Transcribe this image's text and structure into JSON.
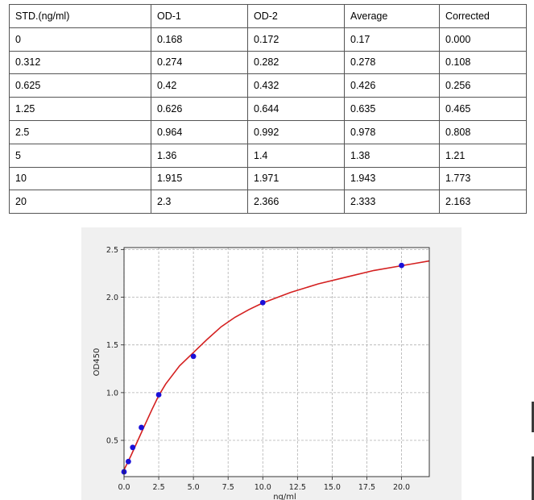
{
  "table": {
    "headers": [
      "STD.(ng/ml)",
      "OD-1",
      "OD-2",
      "Average",
      "Corrected"
    ],
    "rows": [
      [
        "0",
        "0.168",
        "0.172",
        "0.17",
        "0.000"
      ],
      [
        "0.312",
        "0.274",
        "0.282",
        "0.278",
        "0.108"
      ],
      [
        "0.625",
        "0.42",
        "0.432",
        "0.426",
        "0.256"
      ],
      [
        "1.25",
        "0.626",
        "0.644",
        "0.635",
        "0.465"
      ],
      [
        "2.5",
        "0.964",
        "0.992",
        "0.978",
        "0.808"
      ],
      [
        "5",
        "1.36",
        "1.4",
        "1.38",
        "1.21"
      ],
      [
        "10",
        "1.915",
        "1.971",
        "1.943",
        "1.773"
      ],
      [
        "20",
        "2.3",
        "2.366",
        "2.333",
        "2.163"
      ]
    ]
  },
  "chart_data": {
    "type": "scatter",
    "title": "",
    "xlabel": "ng/ml",
    "ylabel": "OD450",
    "xlim": [
      0,
      22
    ],
    "ylim": [
      0.12,
      2.52
    ],
    "x_ticks": [
      "0.0",
      "2.5",
      "5.0",
      "7.5",
      "10.0",
      "12.5",
      "15.0",
      "17.5",
      "20.0"
    ],
    "y_ticks": [
      "0.5",
      "1.0",
      "1.5",
      "2.0",
      "2.5"
    ],
    "grid": true,
    "series": [
      {
        "x": [
          0,
          0.312,
          0.625,
          1.25,
          2.5,
          5,
          10,
          20
        ],
        "y": [
          0.17,
          0.278,
          0.426,
          0.635,
          0.978,
          1.38,
          1.943,
          2.333
        ],
        "marker_color": "#1a10d8"
      }
    ],
    "fit_curve": {
      "x": [
        0,
        0.5,
        1,
        1.5,
        2,
        2.5,
        3,
        4,
        5,
        6,
        7,
        8,
        9,
        10,
        12,
        14,
        16,
        18,
        20,
        22
      ],
      "y": [
        0.19,
        0.34,
        0.5,
        0.66,
        0.82,
        0.97,
        1.09,
        1.28,
        1.42,
        1.56,
        1.69,
        1.79,
        1.87,
        1.94,
        2.05,
        2.14,
        2.21,
        2.28,
        2.33,
        2.38
      ],
      "color": "#d42020"
    }
  }
}
